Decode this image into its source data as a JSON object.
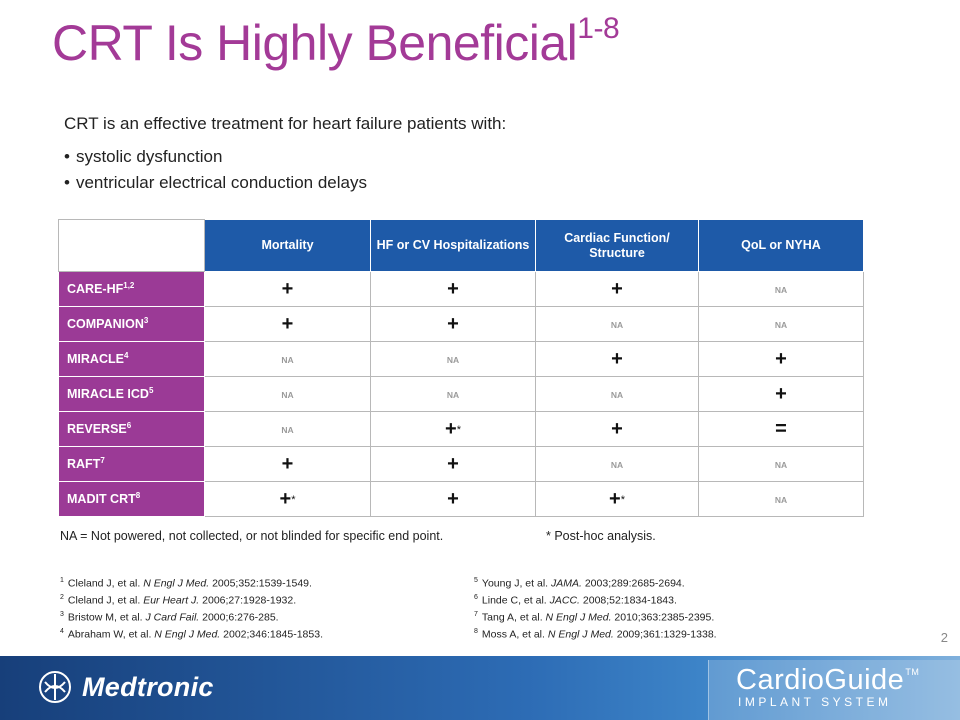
{
  "slide": {
    "title": "CRT Is Highly Beneficial",
    "title_sup": "1-8",
    "intro": "CRT is an effective treatment for heart failure patients with:",
    "bullets": [
      "systolic dysfunction",
      "ventricular electrical conduction delays"
    ],
    "page_number": "2"
  },
  "table": {
    "columns": [
      "Mortality",
      "HF or CV Hospitalizations",
      "Cardiac Function/ Structure",
      "QoL or NYHA"
    ],
    "rows": [
      {
        "label": "CARE-HF",
        "sup": "1,2",
        "cells": [
          "+",
          "+",
          "+",
          "NA"
        ]
      },
      {
        "label": "COMPANION",
        "sup": "3",
        "cells": [
          "+",
          "+",
          "NA",
          "NA"
        ]
      },
      {
        "label": "MIRACLE",
        "sup": "4",
        "cells": [
          "NA",
          "NA",
          "+",
          "+"
        ]
      },
      {
        "label": "MIRACLE ICD",
        "sup": "5",
        "cells": [
          "NA",
          "NA",
          "NA",
          "+"
        ]
      },
      {
        "label": "REVERSE",
        "sup": "6",
        "cells": [
          "NA",
          "+*",
          "+",
          "="
        ]
      },
      {
        "label": "RAFT",
        "sup": "7",
        "cells": [
          "+",
          "+",
          "NA",
          "NA"
        ]
      },
      {
        "label": "MADIT CRT",
        "sup": "8",
        "cells": [
          "+*",
          "+",
          "+*",
          "NA"
        ]
      }
    ]
  },
  "footnotes": {
    "na": "NA = Not powered, not collected, or not blinded for specific end point.",
    "star": "* Post-hoc analysis."
  },
  "references": {
    "left": [
      {
        "n": "1",
        "pre": "Cleland J, et al. ",
        "journal": "N Engl J Med.",
        "post": " 2005;352:1539-1549."
      },
      {
        "n": "2",
        "pre": "Cleland J, et al. ",
        "journal": "Eur Heart J.",
        "post": " 2006;27:1928-1932."
      },
      {
        "n": "3",
        "pre": "Bristow M, et al. ",
        "journal": "J Card Fail.",
        "post": " 2000;6:276-285."
      },
      {
        "n": "4",
        "pre": "Abraham W, et al. ",
        "journal": "N Engl J Med.",
        "post": " 2002;346:1845-1853."
      }
    ],
    "right": [
      {
        "n": "5",
        "pre": "Young J, et al. ",
        "journal": "JAMA.",
        "post": " 2003;289:2685-2694."
      },
      {
        "n": "6",
        "pre": "Linde C, et al. ",
        "journal": "JACC.",
        "post": " 2008;52:1834-1843."
      },
      {
        "n": "7",
        "pre": "Tang A, et al. ",
        "journal": "N Engl J Med.",
        "post": " 2010;363:2385-2395."
      },
      {
        "n": "8",
        "pre": "Moss A, et al. ",
        "journal": "N Engl J Med.",
        "post": " 2009;361:1329-1338."
      }
    ]
  },
  "branding": {
    "company": "Medtronic",
    "product": "CardioGuide",
    "product_tm": "TM",
    "product_sub": "IMPLANT SYSTEM"
  },
  "colors": {
    "title": "#a33a97",
    "header_blue": "#1e5aa8",
    "row_purple": "#9b3a96",
    "bar_blue": "#1d4f96"
  },
  "icons": {
    "logo": "medtronic-logo-icon"
  }
}
